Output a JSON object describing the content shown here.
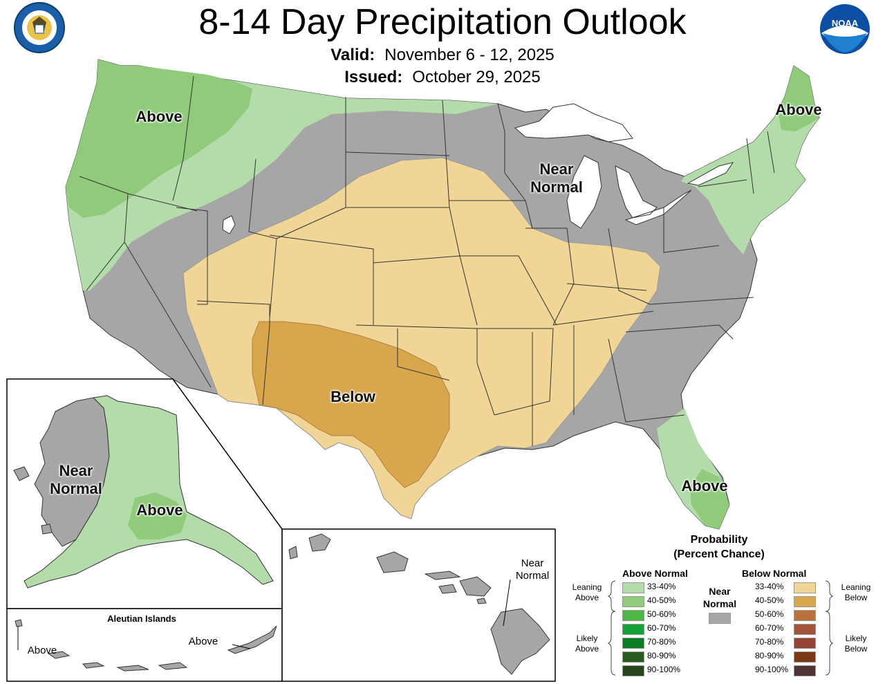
{
  "header": {
    "title": "8-14 Day Precipitation Outlook",
    "valid_label": "Valid:",
    "valid_value": "November 6 - 12, 2025",
    "issued_label": "Issued:",
    "issued_value": "October 29, 2025"
  },
  "logos": {
    "commerce": "Department of Commerce United States of America seal",
    "noaa": "NOAA"
  },
  "labels": {
    "conus_above_nw": "Above",
    "conus_above_ne": "Above",
    "conus_near_normal": "Near\nNormal",
    "conus_below": "Below",
    "conus_above_fl": "Above",
    "ak_near_normal": "Near\nNormal",
    "ak_above": "Above",
    "aleutian_title": "Aleutian Islands",
    "aleutian_above_w": "Above",
    "aleutian_above_e": "Above",
    "hawaii_near_normal": "Near\nNormal"
  },
  "legend": {
    "title": "Probability\n(Percent Chance)",
    "above_header": "Above Normal",
    "below_header": "Below Normal",
    "near_header": "Near\nNormal",
    "leaning_above": "Leaning\nAbove",
    "likely_above": "Likely\nAbove",
    "leaning_below": "Leaning\nBelow",
    "likely_below": "Likely\nBelow",
    "above_items": [
      {
        "label": "33-40%",
        "color": "#b3dcaa"
      },
      {
        "label": "40-50%",
        "color": "#8fcb7b"
      },
      {
        "label": "50-60%",
        "color": "#4fb845"
      },
      {
        "label": "60-70%",
        "color": "#14a135"
      },
      {
        "label": "70-80%",
        "color": "#0a7d25"
      },
      {
        "label": "80-90%",
        "color": "#285a1e"
      },
      {
        "label": "90-100%",
        "color": "#27451a"
      }
    ],
    "below_items": [
      {
        "label": "33-40%",
        "color": "#f0d597"
      },
      {
        "label": "40-50%",
        "color": "#d8a64c"
      },
      {
        "label": "50-60%",
        "color": "#ba713a"
      },
      {
        "label": "60-70%",
        "color": "#a3533a"
      },
      {
        "label": "70-80%",
        "color": "#974236"
      },
      {
        "label": "80-90%",
        "color": "#7c3914"
      },
      {
        "label": "90-100%",
        "color": "#4d3332"
      }
    ],
    "near_color": "#a6a6a6"
  },
  "colors": {
    "near_normal": "#a6a6a6",
    "above_33_40": "#b3dcaa",
    "above_40_50": "#8fcb7b",
    "below_33_40": "#f0d597",
    "below_40_50": "#d8a64c"
  }
}
